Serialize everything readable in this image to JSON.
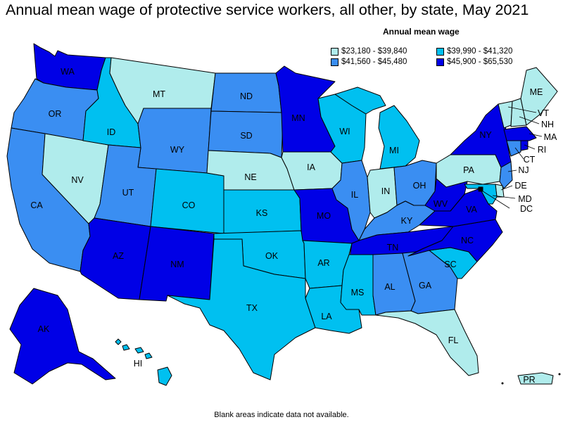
{
  "title": "Annual mean wage of protective service workers, all other, by state, May 2021",
  "legend": {
    "title": "Annual mean wage",
    "bins": [
      {
        "label": "$23,180 - $39,840",
        "color": "#b0ecec"
      },
      {
        "label": "$39,990 - $41,320",
        "color": "#00c0f0"
      },
      {
        "label": "$41,560 - $45,480",
        "color": "#3a8ef2"
      },
      {
        "label": "$45,900 - $65,530",
        "color": "#0000e6"
      }
    ]
  },
  "states": [
    {
      "abbr": "WA",
      "bin": 3
    },
    {
      "abbr": "OR",
      "bin": 2
    },
    {
      "abbr": "CA",
      "bin": 2
    },
    {
      "abbr": "NV",
      "bin": 0
    },
    {
      "abbr": "ID",
      "bin": 1
    },
    {
      "abbr": "MT",
      "bin": 0
    },
    {
      "abbr": "WY",
      "bin": 2
    },
    {
      "abbr": "UT",
      "bin": 2
    },
    {
      "abbr": "CO",
      "bin": 1
    },
    {
      "abbr": "AZ",
      "bin": 3
    },
    {
      "abbr": "NM",
      "bin": 3
    },
    {
      "abbr": "ND",
      "bin": 2
    },
    {
      "abbr": "SD",
      "bin": 2
    },
    {
      "abbr": "NE",
      "bin": 0
    },
    {
      "abbr": "KS",
      "bin": 1
    },
    {
      "abbr": "OK",
      "bin": 1
    },
    {
      "abbr": "TX",
      "bin": 1
    },
    {
      "abbr": "MN",
      "bin": 3
    },
    {
      "abbr": "IA",
      "bin": 0
    },
    {
      "abbr": "MO",
      "bin": 3
    },
    {
      "abbr": "AR",
      "bin": 1
    },
    {
      "abbr": "LA",
      "bin": 1
    },
    {
      "abbr": "WI",
      "bin": 1
    },
    {
      "abbr": "IL",
      "bin": 2
    },
    {
      "abbr": "MI",
      "bin": 1
    },
    {
      "abbr": "IN",
      "bin": 0
    },
    {
      "abbr": "OH",
      "bin": 2
    },
    {
      "abbr": "KY",
      "bin": 2
    },
    {
      "abbr": "TN",
      "bin": 3
    },
    {
      "abbr": "MS",
      "bin": 1
    },
    {
      "abbr": "AL",
      "bin": 2
    },
    {
      "abbr": "GA",
      "bin": 2
    },
    {
      "abbr": "FL",
      "bin": 0
    },
    {
      "abbr": "SC",
      "bin": 1
    },
    {
      "abbr": "NC",
      "bin": 3
    },
    {
      "abbr": "VA",
      "bin": 3
    },
    {
      "abbr": "WV",
      "bin": 3
    },
    {
      "abbr": "PA",
      "bin": 0
    },
    {
      "abbr": "NY",
      "bin": 3
    },
    {
      "abbr": "VT",
      "bin": 0
    },
    {
      "abbr": "NH",
      "bin": 0
    },
    {
      "abbr": "ME",
      "bin": 0
    },
    {
      "abbr": "MA",
      "bin": 3
    },
    {
      "abbr": "RI",
      "bin": 3
    },
    {
      "abbr": "CT",
      "bin": 2
    },
    {
      "abbr": "NJ",
      "bin": 2
    },
    {
      "abbr": "DE",
      "bin": 0
    },
    {
      "abbr": "MD",
      "bin": 1
    },
    {
      "abbr": "DC",
      "bin": 3
    },
    {
      "abbr": "AK",
      "bin": 3
    },
    {
      "abbr": "HI",
      "bin": 1
    },
    {
      "abbr": "PR",
      "bin": 0
    }
  ],
  "footer": "Blank areas indicate data not available."
}
